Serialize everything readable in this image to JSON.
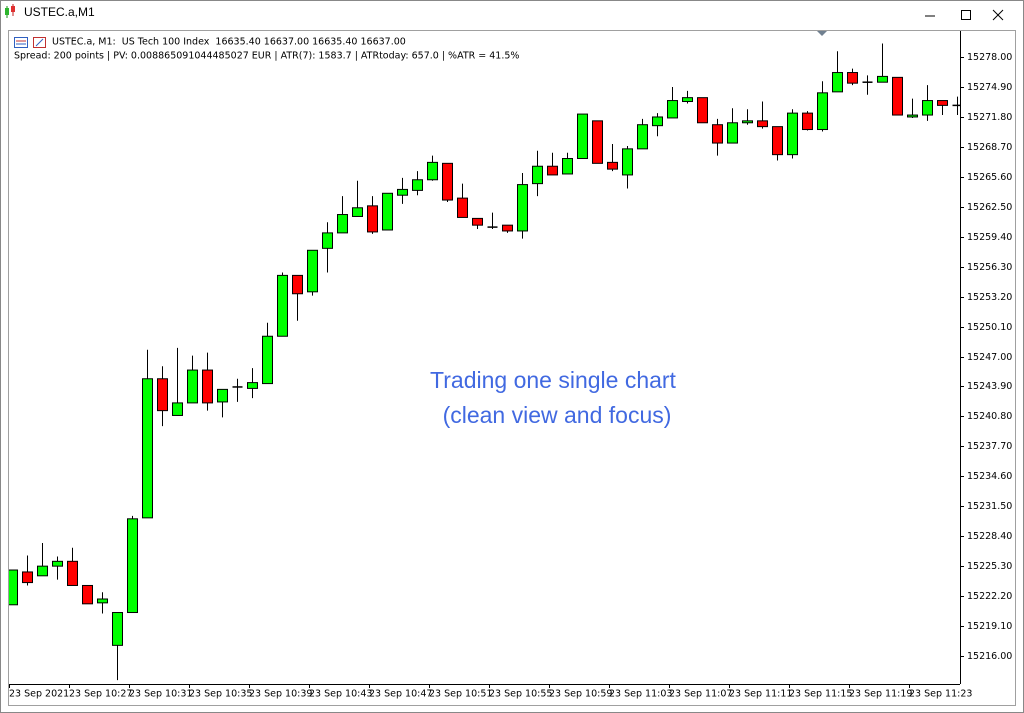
{
  "window": {
    "title": "USTEC.a,M1"
  },
  "chart_data": {
    "type": "candlestick",
    "info": "USTEC.a, M1:  US Tech 100 Index  16635.40 16637.00 16635.40 16637.00",
    "stats": "Spread: 200 points | PV: 0.008865091044485027 EUR | ATR(7): 1583.7 | ATRtoday: 657.0 | %ATR = 41.5%",
    "annotation": [
      "Trading one single chart",
      "(clean view and focus)"
    ],
    "up_color": "#00ff00",
    "down_color": "#ff0000",
    "doji_color": "#000000",
    "categories": [
      "23 Sep 2021",
      null,
      null,
      null,
      "23 Sep 10:27",
      null,
      null,
      null,
      "23 Sep 10:31",
      null,
      null,
      null,
      "23 Sep 10:35",
      null,
      null,
      null,
      "23 Sep 10:39",
      null,
      null,
      null,
      "23 Sep 10:43",
      null,
      null,
      null,
      "23 Sep 10:47",
      null,
      null,
      null,
      "23 Sep 10:51",
      null,
      null,
      null,
      "23 Sep 10:55",
      null,
      null,
      null,
      "23 Sep 10:59",
      null,
      null,
      null,
      "23 Sep 11:03",
      null,
      null,
      null,
      "23 Sep 11:07",
      null,
      null,
      null,
      "23 Sep 11:11",
      null,
      null,
      null,
      "23 Sep 11:15",
      null,
      null,
      null,
      "23 Sep 11:19",
      null,
      null,
      null,
      "23 Sep 11:23",
      null,
      null,
      null
    ],
    "open": [
      15221.3,
      15224.7,
      15224.3,
      15225.3,
      15225.8,
      15223.3,
      15221.5,
      15217.1,
      15220.5,
      15230.3,
      15244.7,
      15240.9,
      15242.2,
      15245.6,
      15242.3,
      15243.8,
      15243.7,
      15244.2,
      15249.1,
      15255.4,
      15253.7,
      15258.2,
      15259.8,
      15261.5,
      15262.6,
      15260.1,
      15263.7,
      15264.2,
      15265.3,
      15267.0,
      15263.4,
      15261.3,
      15260.4,
      15260.6,
      15260.0,
      15264.9,
      15266.7,
      15265.9,
      15267.5,
      15271.4,
      15267.1,
      15265.8,
      15268.5,
      15270.9,
      15271.7,
      15273.4,
      15273.8,
      15271.0,
      15269.1,
      15271.2,
      15271.4,
      15270.8,
      15267.9,
      15272.2,
      15270.5,
      15274.4,
      15276.4,
      15275.4,
      15275.4,
      15275.9,
      15271.8,
      15272.0,
      15273.5,
      15273.0
    ],
    "high": [
      15224.9,
      15226.4,
      15227.7,
      15226.3,
      15227.2,
      15223.3,
      15222.6,
      15220.5,
      15230.5,
      15247.7,
      15246.0,
      15247.9,
      15247.1,
      15247.4,
      15243.6,
      15244.7,
      15245.8,
      15250.5,
      15255.7,
      15255.4,
      15258.0,
      15260.9,
      15263.6,
      15265.2,
      15263.6,
      15263.9,
      15265.5,
      15266.2,
      15267.8,
      15267.0,
      15264.9,
      15261.3,
      15261.9,
      15260.6,
      15266.0,
      15268.3,
      15268.1,
      15268.1,
      15272.1,
      15271.4,
      15269.0,
      15268.8,
      15271.6,
      15272.2,
      15274.9,
      15274.5,
      15273.8,
      15271.6,
      15272.7,
      15272.6,
      15273.4,
      15270.8,
      15272.6,
      15272.4,
      15275.5,
      15278.6,
      15276.8,
      15276.1,
      15279.4,
      15275.9,
      15273.7,
      15275.1,
      15273.5,
      15273.9
    ],
    "low": [
      15221.3,
      15223.3,
      15224.3,
      15223.9,
      15223.3,
      15221.4,
      15220.4,
      15213.5,
      15220.5,
      15230.3,
      15239.8,
      15240.9,
      15242.2,
      15241.4,
      15240.7,
      15242.3,
      15242.7,
      15244.2,
      15249.1,
      15250.7,
      15253.3,
      15255.7,
      15259.8,
      15261.5,
      15259.7,
      15260.1,
      15262.8,
      15263.7,
      15265.2,
      15263.0,
      15261.4,
      15260.2,
      15260.2,
      15259.8,
      15259.2,
      15263.6,
      15265.8,
      15265.9,
      15267.5,
      15267.0,
      15266.2,
      15264.4,
      15268.5,
      15269.8,
      15271.7,
      15273.2,
      15271.2,
      15267.8,
      15269.1,
      15271.0,
      15270.6,
      15267.3,
      15267.5,
      15270.4,
      15270.3,
      15274.4,
      15275.1,
      15274.1,
      15275.4,
      15272.0,
      15271.7,
      15271.4,
      15272.0,
      15272.0
    ],
    "close": [
      15224.9,
      15223.6,
      15225.3,
      15225.8,
      15223.3,
      15221.4,
      15221.9,
      15220.5,
      15230.2,
      15244.7,
      15241.4,
      15242.2,
      15245.6,
      15242.2,
      15243.6,
      15243.9,
      15244.3,
      15249.1,
      15255.4,
      15253.5,
      15258.0,
      15259.8,
      15261.7,
      15262.4,
      15259.9,
      15263.9,
      15264.3,
      15265.3,
      15267.1,
      15263.2,
      15261.4,
      15260.6,
      15260.4,
      15260.0,
      15264.8,
      15266.7,
      15265.8,
      15267.5,
      15272.1,
      15267.0,
      15266.4,
      15268.5,
      15271.0,
      15271.8,
      15273.5,
      15273.8,
      15271.2,
      15269.1,
      15271.2,
      15271.4,
      15270.8,
      15267.9,
      15272.2,
      15270.5,
      15274.3,
      15276.4,
      15275.3,
      15275.4,
      15276.0,
      15272.0,
      15272.0,
      15273.5,
      15273.0,
      15273.0
    ],
    "ylim": [
      15213.1,
      15280.7
    ],
    "yticks": [
      {
        "value": 15278,
        "label": "15278.00"
      },
      {
        "value": 15274.9,
        "label": "15274.90"
      },
      {
        "value": 15271.8,
        "label": "15271.80"
      },
      {
        "value": 15268.7,
        "label": "15268.70"
      },
      {
        "value": 15265.6,
        "label": "15265.60"
      },
      {
        "value": 15262.5,
        "label": "15262.50"
      },
      {
        "value": 15259.4,
        "label": "15259.40"
      },
      {
        "value": 15256.3,
        "label": "15256.30"
      },
      {
        "value": 15253.2,
        "label": "15253.20"
      },
      {
        "value": 15250.1,
        "label": "15250.10"
      },
      {
        "value": 15247,
        "label": "15247.00"
      },
      {
        "value": 15243.9,
        "label": "15243.90"
      },
      {
        "value": 15240.8,
        "label": "15240.80"
      },
      {
        "value": 15237.7,
        "label": "15237.70"
      },
      {
        "value": 15234.6,
        "label": "15234.60"
      },
      {
        "value": 15231.5,
        "label": "15231.50"
      },
      {
        "value": 15228.4,
        "label": "15228.40"
      },
      {
        "value": 15225.3,
        "label": "15225.30"
      },
      {
        "value": 15222.2,
        "label": "15222.20"
      },
      {
        "value": 15219.1,
        "label": "15219.10"
      },
      {
        "value": 15216,
        "label": "15216.00"
      }
    ],
    "grid": false
  }
}
